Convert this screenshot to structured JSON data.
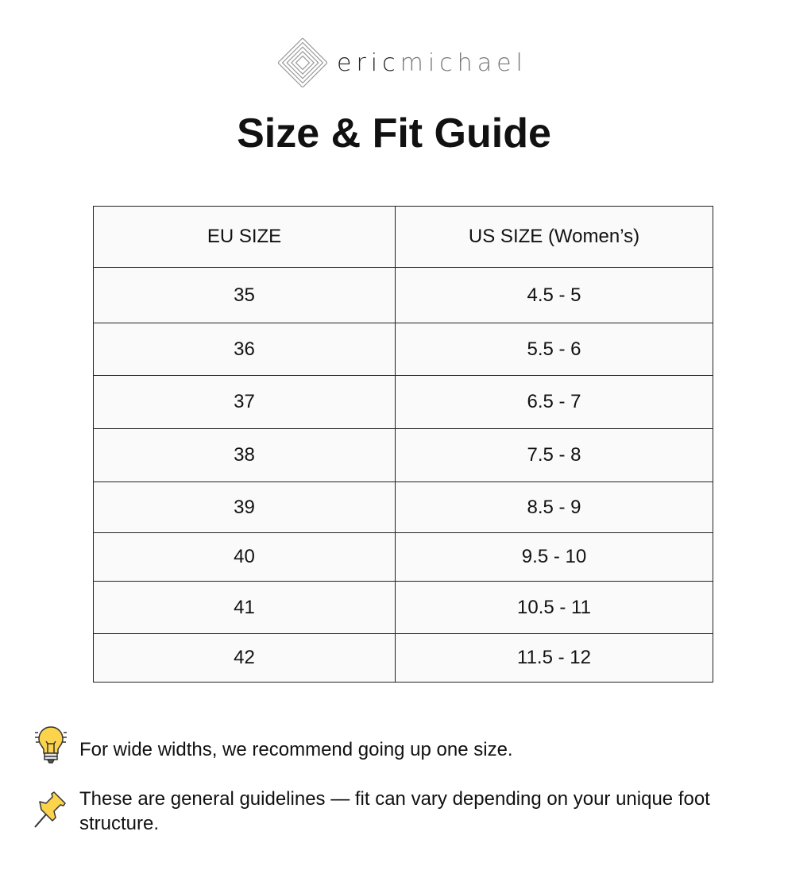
{
  "brand": {
    "logo_text_a": "eric",
    "logo_text_b": "michael"
  },
  "title": "Size & Fit Guide",
  "table": {
    "headers": [
      "EU SIZE",
      "US SIZE (Women’s)"
    ],
    "rows": [
      [
        "35",
        "4.5 - 5"
      ],
      [
        "36",
        "5.5 - 6"
      ],
      [
        "37",
        "6.5 - 7"
      ],
      [
        "38",
        "7.5 - 8"
      ],
      [
        "39",
        "8.5 - 9"
      ],
      [
        "40",
        "9.5 - 10"
      ],
      [
        "41",
        "10.5 - 11"
      ],
      [
        "42",
        "11.5 - 12"
      ]
    ]
  },
  "notes": [
    {
      "icon": "lightbulb-icon",
      "text": "For wide widths, we recommend going up one size."
    },
    {
      "icon": "pushpin-icon",
      "text": "These are general guidelines — fit can vary depending on your unique foot structure."
    }
  ]
}
